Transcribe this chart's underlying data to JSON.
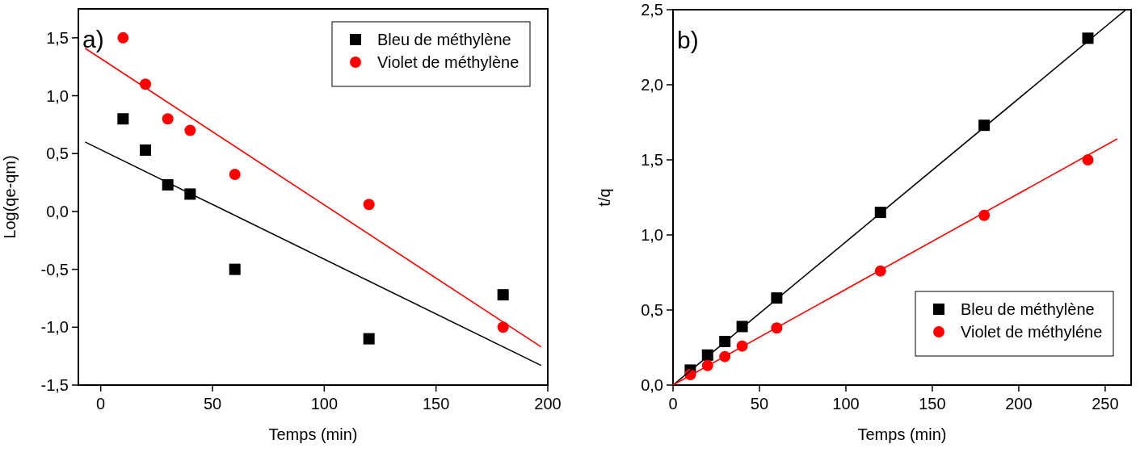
{
  "chart_data": [
    {
      "type": "scatter",
      "xlabel": "Temps (min)",
      "ylabel": "Log(qe-qm)",
      "annotations": [
        "a)"
      ],
      "xlim": [
        -10,
        200
      ],
      "ylim": [
        -1.5,
        1.75
      ],
      "xticks": [
        0,
        50,
        100,
        150,
        200
      ],
      "yticks": [
        {
          "value": -1.5,
          "label": "-1,5"
        },
        {
          "value": -1,
          "label": "-1,0"
        },
        {
          "value": -0.5,
          "label": "-0,5"
        },
        {
          "value": 0,
          "label": "0,0"
        },
        {
          "value": 0.5,
          "label": "0,5"
        },
        {
          "value": 1,
          "label": "1,0"
        },
        {
          "value": 1.5,
          "label": "1,5"
        }
      ],
      "legend": "top right",
      "grid": false,
      "series": [
        {
          "name": "Bleu de méthylène",
          "marker": "square",
          "color": "#000000",
          "x": [
            10,
            20,
            30,
            40,
            60,
            120,
            180
          ],
          "values": [
            0.8,
            0.53,
            0.23,
            0.15,
            -0.5,
            -1.1,
            -0.72
          ]
        },
        {
          "name": "Violet de méthylène",
          "marker": "circle",
          "color": "#ff0000",
          "x": [
            10,
            20,
            30,
            40,
            60,
            120,
            180
          ],
          "values": [
            1.5,
            1.1,
            0.8,
            0.7,
            0.32,
            0.06,
            -1.0
          ]
        },
        {
          "type": "line",
          "color": "#000000",
          "x": [
            -7,
            197
          ],
          "values": [
            0.6,
            -1.33
          ]
        },
        {
          "type": "line",
          "color": "#ff0000",
          "x": [
            -7,
            197
          ],
          "values": [
            1.41,
            -1.17
          ]
        }
      ]
    },
    {
      "type": "scatter",
      "xlabel": "Temps (min)",
      "ylabel": "t/q",
      "annotations": [
        "b)"
      ],
      "xlim": [
        0,
        265
      ],
      "ylim": [
        0,
        2.5
      ],
      "xticks": [
        0,
        50,
        100,
        150,
        200,
        250
      ],
      "yticks": [
        {
          "value": 0,
          "label": "0,0"
        },
        {
          "value": 0.5,
          "label": "0,5"
        },
        {
          "value": 1,
          "label": "1,0"
        },
        {
          "value": 1.5,
          "label": "1,5"
        },
        {
          "value": 2,
          "label": "2,0"
        },
        {
          "value": 2.5,
          "label": "2,5"
        }
      ],
      "legend": "bottom right",
      "grid": false,
      "series": [
        {
          "name": "Bleu de méthylène",
          "marker": "square",
          "color": "#000000",
          "x": [
            10,
            20,
            30,
            40,
            60,
            120,
            180,
            240
          ],
          "values": [
            0.1,
            0.2,
            0.29,
            0.39,
            0.58,
            1.15,
            1.73,
            2.31
          ]
        },
        {
          "name": "Violet de méthyléne",
          "marker": "circle",
          "color": "#ff0000",
          "x": [
            10,
            20,
            30,
            40,
            60,
            120,
            180,
            240
          ],
          "values": [
            0.07,
            0.13,
            0.19,
            0.26,
            0.38,
            0.76,
            1.13,
            1.5
          ]
        },
        {
          "type": "line",
          "color": "#000000",
          "x": [
            0,
            262
          ],
          "values": [
            0,
            2.5
          ]
        },
        {
          "type": "line",
          "color": "#ff0000",
          "x": [
            0,
            257
          ],
          "values": [
            0,
            1.64
          ]
        }
      ]
    }
  ]
}
